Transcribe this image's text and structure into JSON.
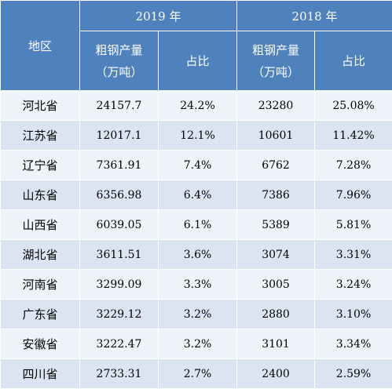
{
  "table": {
    "header": {
      "region": "地区",
      "year_2019": "2019 年",
      "year_2018": "2018 年",
      "output_line1": "粗钢产量",
      "output_line2": "（万吨）",
      "share": "占比"
    },
    "rows": [
      {
        "region": "河北省",
        "out2019": "24157.7",
        "share2019": "24.2%",
        "out2018": "23280",
        "share2018": "25.08%"
      },
      {
        "region": "江苏省",
        "out2019": "12017.1",
        "share2019": "12.1%",
        "out2018": "10601",
        "share2018": "11.42%"
      },
      {
        "region": "辽宁省",
        "out2019": "7361.91",
        "share2019": "7.4%",
        "out2018": "6762",
        "share2018": "7.28%"
      },
      {
        "region": "山东省",
        "out2019": "6356.98",
        "share2019": "6.4%",
        "out2018": "7386",
        "share2018": "7.96%"
      },
      {
        "region": "山西省",
        "out2019": "6039.05",
        "share2019": "6.1%",
        "out2018": "5389",
        "share2018": "5.81%"
      },
      {
        "region": "湖北省",
        "out2019": "3611.51",
        "share2019": "3.6%",
        "out2018": "3074",
        "share2018": "3.31%"
      },
      {
        "region": "河南省",
        "out2019": "3299.09",
        "share2019": "3.3%",
        "out2018": "3005",
        "share2018": "3.24%"
      },
      {
        "region": "广东省",
        "out2019": "3229.12",
        "share2019": "3.2%",
        "out2018": "2880",
        "share2018": "3.10%"
      },
      {
        "region": "安徽省",
        "out2019": "3222.47",
        "share2019": "3.2%",
        "out2018": "3101",
        "share2018": "3.34%"
      },
      {
        "region": "四川省",
        "out2019": "2733.31",
        "share2019": "2.7%",
        "out2018": "2400",
        "share2018": "2.59%"
      }
    ],
    "colors": {
      "header_bg": "#4f81bd",
      "row_light": "#eef3f9",
      "row_dark": "#dbe5f1"
    }
  }
}
